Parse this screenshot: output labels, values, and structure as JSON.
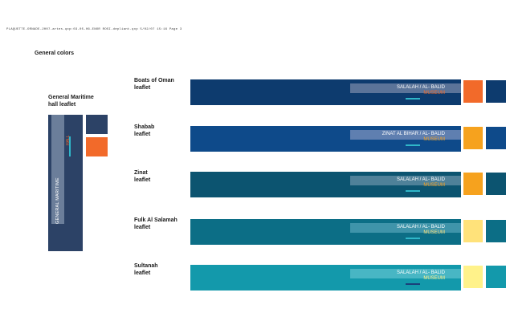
{
  "header": {
    "file_line": "PLAQUETTE-ORNADE-2007-artes.qxp:03-05-06-ENOR ROSI-depliant.qxp  5/02/07  15:16  Page 3"
  },
  "section_title": "General colors",
  "general_maritime": {
    "label_line1": "General Maritime",
    "label_line2": "hall leaflet",
    "vertical_text": "GENERAL MARITIME",
    "vertical_accent_text": "HALL",
    "colors": {
      "main": "#2c4266",
      "inner": "#6b7e9a",
      "swatch1": "#2c4266",
      "swatch2": "#f26a2a",
      "accent": "#2fb7c9"
    }
  },
  "leaflets": [
    {
      "title_line1": "Boats of Oman",
      "title_line2": "leaflet",
      "band_text": "SALALAH / AL- BALID",
      "museum_text": "MUSEUM",
      "colors": {
        "band": "#0d3b6e",
        "light": "#5b7499",
        "museum": "#f26a2a",
        "accent": "#2fb7c9",
        "swatch_a": "#f26a2a",
        "swatch_b": "#0d3b6e"
      }
    },
    {
      "title_line1": "Shabab",
      "title_line2": "leaflet",
      "band_text": "ZINAT AL BIHAR / AL- BALID",
      "museum_text": "MUSEUM",
      "colors": {
        "band": "#0e4a8a",
        "light": "#5f7fb0",
        "museum": "#f6a21e",
        "accent": "#2fb7c9",
        "swatch_a": "#f6a21e",
        "swatch_b": "#0e4a8a"
      }
    },
    {
      "title_line1": "Zinat",
      "title_line2": "leaflet",
      "band_text": "SALALAH / AL- BALID",
      "museum_text": "MUSEUM",
      "colors": {
        "band": "#0c5470",
        "light": "#4f8199",
        "museum": "#f6a21e",
        "accent": "#2fb7c9",
        "swatch_a": "#f6a21e",
        "swatch_b": "#0c5470"
      }
    },
    {
      "title_line1": "Fulk Al Salamah",
      "title_line2": "leaflet",
      "band_text": "SALALAH / AL- BALID",
      "museum_text": "MUSEUM",
      "colors": {
        "band": "#0c6e86",
        "light": "#3f94aa",
        "museum": "#ffe27a",
        "accent": "#2fb7c9",
        "swatch_a": "#ffe27a",
        "swatch_b": "#0c6e86"
      }
    },
    {
      "title_line1": "Sultanah",
      "title_line2": "leaflet",
      "band_text": "SALALAH / AL- BALID",
      "museum_text": "MUSEUM",
      "colors": {
        "band": "#1399ab",
        "light": "#48b6c4",
        "museum": "#fff28a",
        "accent": "#1a3f7a",
        "swatch_a": "#fff28a",
        "swatch_b": "#1399ab"
      }
    }
  ]
}
